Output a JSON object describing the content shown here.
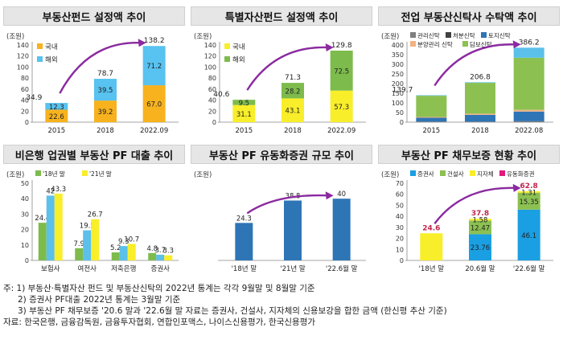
{
  "chart_data": [
    {
      "type": "bar",
      "stacked": true,
      "title": "부동산펀드 설정액 추이",
      "unit": "(조원)",
      "categories": [
        "2015",
        "2018",
        "2022.09"
      ],
      "series": [
        {
          "name": "국내",
          "color": "#f7b21e",
          "values": [
            22.6,
            39.2,
            67.0
          ]
        },
        {
          "name": "해외",
          "color": "#58c2f0",
          "values": [
            12.3,
            39.5,
            71.2
          ]
        }
      ],
      "totals": [
        34.9,
        78.7,
        138.2
      ],
      "ylim": [
        0,
        140
      ],
      "yticks": [
        0,
        20,
        40,
        60,
        80,
        100,
        120,
        140
      ],
      "legend": "top-left",
      "trend_arrow": true
    },
    {
      "type": "bar",
      "stacked": true,
      "title": "특별자산펀드 설정액 추이",
      "unit": "(조원)",
      "categories": [
        "2015",
        "2018",
        "2022.09"
      ],
      "series": [
        {
          "name": "국내",
          "color": "#f9ee2a",
          "values": [
            31.1,
            43.1,
            57.3
          ]
        },
        {
          "name": "해외",
          "color": "#7dbb4c",
          "values": [
            9.5,
            28.2,
            72.5
          ]
        }
      ],
      "totals": [
        40.6,
        71.3,
        129.8
      ],
      "ylim": [
        0,
        140
      ],
      "yticks": [
        0,
        20,
        40,
        60,
        80,
        100,
        120,
        140
      ],
      "legend": "top-left",
      "trend_arrow": true
    },
    {
      "type": "bar",
      "stacked": true,
      "title": "전업 부동산신탁사 수탁액 추이",
      "unit": "(조원)",
      "categories": [
        "2015",
        "2018",
        "2022.08"
      ],
      "series": [
        {
          "name": "관리신탁",
          "color": "#7f7f7f",
          "values": [
            2,
            2,
            3
          ]
        },
        {
          "name": "처분신탁",
          "color": "#404040",
          "values": [
            1,
            1,
            2
          ]
        },
        {
          "name": "토지신탁",
          "color": "#2e75b6",
          "values": [
            20,
            35,
            50
          ]
        },
        {
          "name": "분양관리 신탁",
          "color": "#f4b183",
          "values": [
            4,
            6,
            9
          ]
        },
        {
          "name": "담보신탁",
          "color": "#8cc152",
          "values": [
            110,
            160,
            270
          ]
        },
        {
          "name": "",
          "color": "#5bc0ea",
          "values": [
            2.7,
            2.8,
            52.2
          ]
        }
      ],
      "totals": [
        139.7,
        206.8,
        386.2
      ],
      "ylim": [
        0,
        400
      ],
      "yticks": [
        0,
        50,
        100,
        150,
        200,
        250,
        300,
        350,
        400
      ],
      "legend": "top",
      "trend_arrow": true
    },
    {
      "type": "bar",
      "title": "비은행 업권별 부동산 PF 대출 추이",
      "unit": "(조원)",
      "categories": [
        "보험사",
        "여전사",
        "저축은행",
        "증권사"
      ],
      "series": [
        {
          "name": "'18년 말",
          "color": "#7dbb4c",
          "values": [
            24.4,
            7.9,
            5.2,
            4.8
          ]
        },
        {
          "name": "",
          "color": "#5bc0ea",
          "values": [
            42.0,
            19.5,
            9.3,
            3.7
          ]
        },
        {
          "name": "'21년 말",
          "color": "#f9ee2a",
          "values": [
            43.3,
            26.7,
            10.7,
            3.3
          ]
        }
      ],
      "ylim": [
        0,
        50
      ],
      "yticks": [
        0,
        10,
        20,
        30,
        40,
        50
      ],
      "legend": "top"
    },
    {
      "type": "bar",
      "title": "부동산 PF 유동화증권 규모 추이",
      "unit": "(조원)",
      "categories": [
        "'18년 말",
        "'21년 말",
        "'22.6월 말"
      ],
      "series": [
        {
          "name": "",
          "color": "#2e75b6",
          "values": [
            24.3,
            38.8,
            40.0
          ]
        }
      ],
      "ylim": [
        0,
        50
      ],
      "legend": "none",
      "trend_arrow": true
    },
    {
      "type": "bar",
      "stacked": true,
      "title": "부동산 PF 채무보증 현황 추이",
      "unit": "(조원)",
      "categories": [
        "'18년 말",
        "20.6월 말",
        "'22.6월 말"
      ],
      "series": [
        {
          "name": "증권사",
          "color": "#1a9fe3",
          "values": [
            null,
            23.76,
            46.1
          ]
        },
        {
          "name": "건설사",
          "color": "#8cc152",
          "values": [
            null,
            12.47,
            15.35
          ]
        },
        {
          "name": "지자체",
          "color": "#f9ee2a",
          "values": [
            24.6,
            1.58,
            1.31
          ]
        },
        {
          "name": "유동화증권",
          "color": "#e0197d",
          "values": [
            null,
            null,
            null
          ]
        }
      ],
      "totals": [
        24.6,
        37.8,
        62.8
      ],
      "ylim": [
        0,
        70
      ],
      "yticks": [
        0,
        10,
        20,
        30,
        40,
        50,
        60,
        70
      ],
      "legend": "top",
      "trend_arrow": true
    }
  ],
  "notes": [
    "주: 1) 부동산·특별자산 펀드 및 부동산신탁의 2022년 통계는 각각 9월말 및 8월말 기준",
    "2) 증권사 PF대출 2022년 통계는 3월말 기준",
    "3) 부동산 PF 채무보증 '20.6 말과 '22.6월 말 자료는 증권사, 건설사, 지자체의 신용보강을 합한 금액 (한신평 추산 기준)",
    "자료: 한국은행, 금융감독원, 금융투자협회, 연합인포맥스, 나이스신용평가, 한국신용평가"
  ]
}
